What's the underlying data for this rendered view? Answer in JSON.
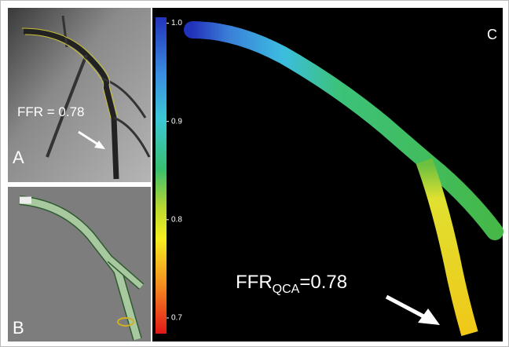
{
  "panels": [
    {
      "label": "A",
      "annotation": "FFR = 0.78"
    },
    {
      "label": "B"
    },
    {
      "label": "C",
      "annotation": {
        "main": "FFR",
        "subscript": "QCA",
        "rest": "=0.78"
      }
    }
  ],
  "colorbar": {
    "lim": [
      0.684,
      1.006
    ],
    "ticks": [
      {
        "value": 1.0,
        "label": "1.0"
      },
      {
        "value": 0.9,
        "label": "0.9"
      },
      {
        "value": 0.8,
        "label": "0.8"
      },
      {
        "value": 0.7,
        "label": "0.7"
      }
    ]
  }
}
